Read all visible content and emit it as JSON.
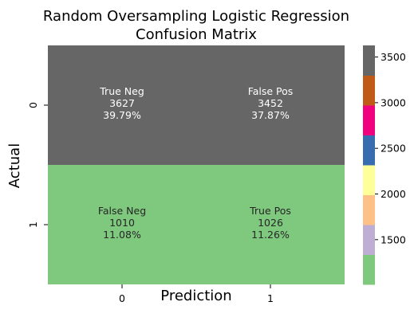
{
  "chart_data": {
    "type": "heatmap",
    "title_line1": "Random Oversampling Logistic Regression",
    "title_line2": "Confusion Matrix",
    "xlabel": "Prediction",
    "ylabel": "Actual",
    "x_categories": [
      "0",
      "1"
    ],
    "y_categories": [
      "0",
      "1"
    ],
    "cells": [
      {
        "row": 0,
        "col": 0,
        "label": "True Neg",
        "count": "3627",
        "pct": "39.79%",
        "value": 3627
      },
      {
        "row": 0,
        "col": 1,
        "label": "False Pos",
        "count": "3452",
        "pct": "37.87%",
        "value": 3452
      },
      {
        "row": 1,
        "col": 0,
        "label": "False Neg",
        "count": "1010",
        "pct": "11.08%",
        "value": 1010
      },
      {
        "row": 1,
        "col": 1,
        "label": "True Pos",
        "count": "1026",
        "pct": "11.26%",
        "value": 1026
      }
    ],
    "colorbar": {
      "min": 1010,
      "max": 3627,
      "ticks": [
        "1500",
        "2000",
        "2500",
        "3000",
        "3500"
      ],
      "tick_values": [
        1500,
        2000,
        2500,
        3000,
        3500
      ],
      "colormap": "Accent",
      "colors": [
        "#7fc97f",
        "#beaed4",
        "#fdc086",
        "#ffff99",
        "#386cb0",
        "#f0027f",
        "#bf5b17",
        "#666666"
      ]
    }
  }
}
